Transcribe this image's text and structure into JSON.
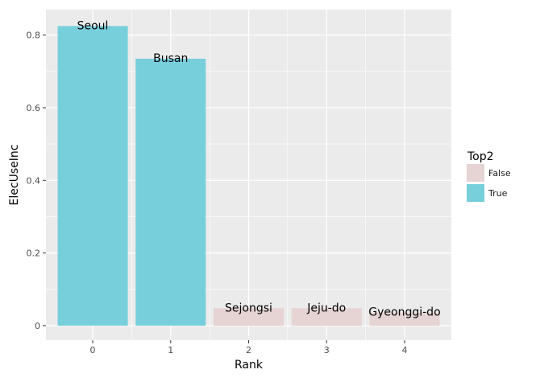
{
  "chart_data": {
    "type": "bar",
    "categories": [
      "0",
      "1",
      "2",
      "3",
      "4"
    ],
    "values": [
      0.825,
      0.735,
      0.048,
      0.048,
      0.036
    ],
    "bar_labels": [
      "Seoul",
      "Busan",
      "Sejongsi",
      "Jeju-do",
      "Gyeonggi-do"
    ],
    "groups": [
      "True",
      "True",
      "False",
      "False",
      "False"
    ],
    "xlabel": "Rank",
    "ylabel": "ElecUseInc",
    "ylim": [
      -0.04,
      0.87
    ],
    "yticks": [
      0,
      0.2,
      0.4,
      0.6,
      0.8
    ],
    "ytick_labels": [
      "0",
      "0.2",
      "0.4",
      "0.6",
      "0.8"
    ],
    "grid": true,
    "legend": {
      "title": "Top2",
      "position": "right",
      "entries": [
        {
          "label": "False",
          "color": "#e5d4d3"
        },
        {
          "label": "True",
          "color": "#78cfdc"
        }
      ]
    },
    "colors": {
      "True": "#78cfdc",
      "False": "#e5d4d3",
      "panel": "#ebebeb",
      "grid": "#ffffff"
    }
  }
}
